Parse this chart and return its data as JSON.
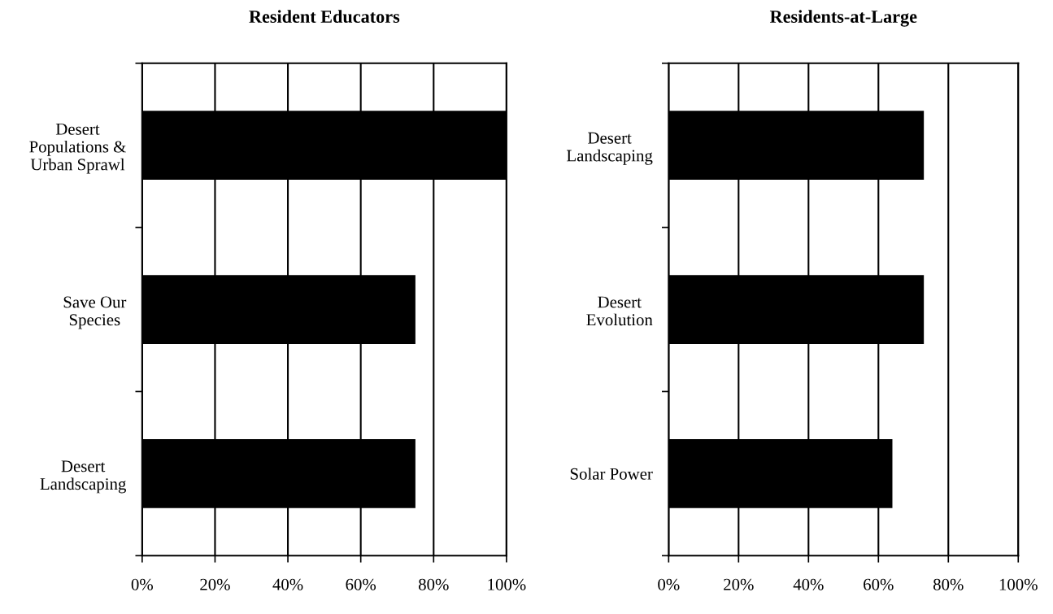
{
  "chart_data": [
    {
      "type": "bar",
      "orientation": "horizontal",
      "title": "Resident Educators",
      "categories": [
        "Desert\nPopulations &\nUrban Sprawl",
        "Save Our\nSpecies",
        "Desert\nLandscaping"
      ],
      "values": [
        100,
        75,
        75
      ],
      "color": "#000000",
      "xlim": [
        0,
        100
      ],
      "xticks": [
        {
          "value": 0,
          "label": "0%"
        },
        {
          "value": 20,
          "label": "20%"
        },
        {
          "value": 40,
          "label": "40%"
        },
        {
          "value": 60,
          "label": "60%"
        },
        {
          "value": 80,
          "label": "80%"
        },
        {
          "value": 100,
          "label": "100%"
        }
      ],
      "grid": "x"
    },
    {
      "type": "bar",
      "orientation": "horizontal",
      "title": "Residents-at-Large",
      "categories": [
        "Desert\nLandscaping",
        "Desert\nEvolution",
        "Solar Power"
      ],
      "values": [
        73,
        73,
        64
      ],
      "color": "#000000",
      "xlim": [
        0,
        100
      ],
      "xticks": [
        {
          "value": 0,
          "label": "0%"
        },
        {
          "value": 20,
          "label": "20%"
        },
        {
          "value": 40,
          "label": "40%"
        },
        {
          "value": 60,
          "label": "60%"
        },
        {
          "value": 80,
          "label": "80%"
        },
        {
          "value": 100,
          "label": "100%"
        }
      ],
      "grid": "x"
    }
  ]
}
